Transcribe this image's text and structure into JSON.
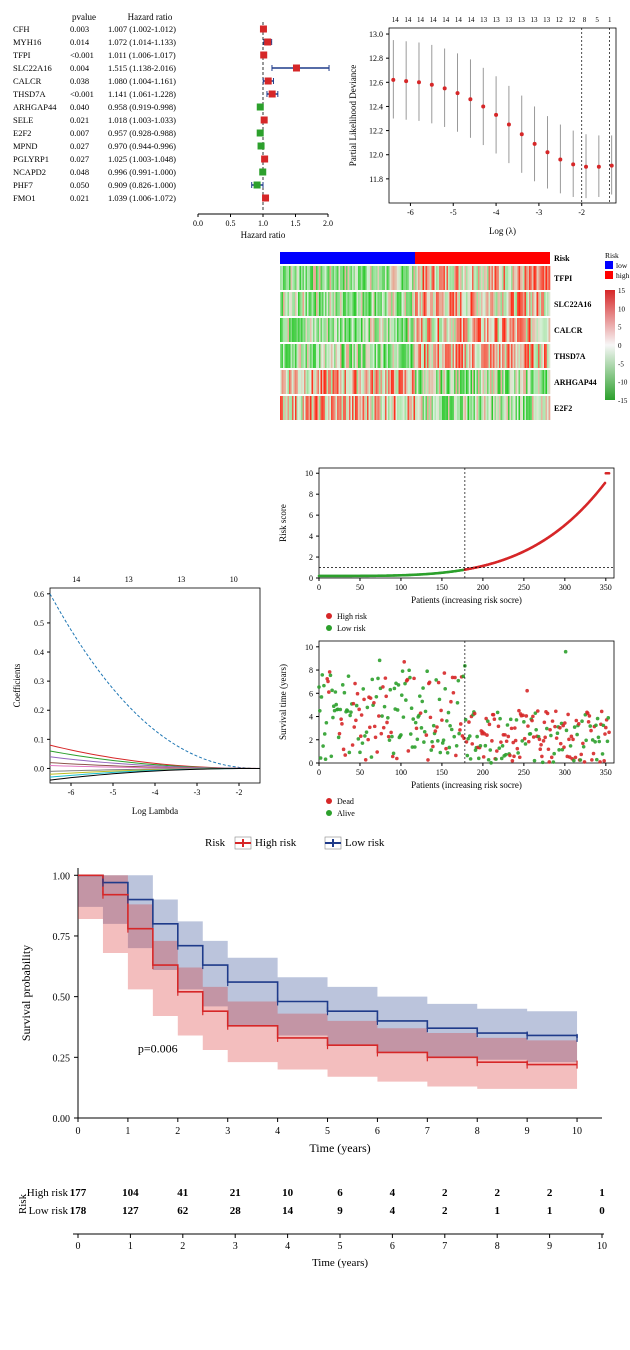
{
  "forest": {
    "title_pvalue": "pvalue",
    "title_hr": "Hazard ratio",
    "rows": [
      {
        "gene": "CFH",
        "p": "0.003",
        "hr": "1.007 (1.002-1.012)",
        "pt": 1.007,
        "lo": 1.002,
        "hi": 1.012,
        "col": "#d62728"
      },
      {
        "gene": "MYH16",
        "p": "0.014",
        "hr": "1.072 (1.014-1.133)",
        "pt": 1.072,
        "lo": 1.014,
        "hi": 1.133,
        "col": "#d62728"
      },
      {
        "gene": "TFPI",
        "p": "<0.001",
        "hr": "1.011 (1.006-1.017)",
        "pt": 1.011,
        "lo": 1.006,
        "hi": 1.017,
        "col": "#d62728"
      },
      {
        "gene": "SLC22A16",
        "p": "0.004",
        "hr": "1.515 (1.138-2.016)",
        "pt": 1.515,
        "lo": 1.138,
        "hi": 2.016,
        "col": "#d62728"
      },
      {
        "gene": "CALCR",
        "p": "0.038",
        "hr": "1.080 (1.004-1.161)",
        "pt": 1.08,
        "lo": 1.004,
        "hi": 1.161,
        "col": "#d62728"
      },
      {
        "gene": "THSD7A",
        "p": "<0.001",
        "hr": "1.141 (1.061-1.228)",
        "pt": 1.141,
        "lo": 1.061,
        "hi": 1.228,
        "col": "#d62728"
      },
      {
        "gene": "ARHGAP44",
        "p": "0.040",
        "hr": "0.958 (0.919-0.998)",
        "pt": 0.958,
        "lo": 0.919,
        "hi": 0.998,
        "col": "#2ca02c"
      },
      {
        "gene": "SELE",
        "p": "0.021",
        "hr": "1.018 (1.003-1.033)",
        "pt": 1.018,
        "lo": 1.003,
        "hi": 1.033,
        "col": "#d62728"
      },
      {
        "gene": "E2F2",
        "p": "0.007",
        "hr": "0.957 (0.928-0.988)",
        "pt": 0.957,
        "lo": 0.928,
        "hi": 0.988,
        "col": "#2ca02c"
      },
      {
        "gene": "MPND",
        "p": "0.027",
        "hr": "0.970 (0.944-0.996)",
        "pt": 0.97,
        "lo": 0.944,
        "hi": 0.996,
        "col": "#2ca02c"
      },
      {
        "gene": "PGLYRP1",
        "p": "0.027",
        "hr": "1.025 (1.003-1.048)",
        "pt": 1.025,
        "lo": 1.003,
        "hi": 1.048,
        "col": "#d62728"
      },
      {
        "gene": "NCAPD2",
        "p": "0.048",
        "hr": "0.996 (0.991-1.000)",
        "pt": 0.996,
        "lo": 0.991,
        "hi": 1.0,
        "col": "#2ca02c"
      },
      {
        "gene": "PHF7",
        "p": "0.050",
        "hr": "0.909 (0.826-1.000)",
        "pt": 0.909,
        "lo": 0.826,
        "hi": 1.0,
        "col": "#2ca02c"
      },
      {
        "gene": "FMO1",
        "p": "0.021",
        "hr": "1.039 (1.006-1.072)",
        "pt": 1.039,
        "lo": 1.006,
        "hi": 1.072,
        "col": "#d62728"
      }
    ],
    "xticks": [
      0.0,
      0.5,
      1.0,
      1.5,
      2.0
    ],
    "xlabel": "Hazard ratio",
    "box_size": 7,
    "whisker_color": "#1f3b8a"
  },
  "lasso_cv": {
    "top_labels": [
      "14",
      "14",
      "14",
      "14",
      "14",
      "14",
      "14",
      "13",
      "13",
      "13",
      "13",
      "13",
      "13",
      "12",
      "12",
      "8",
      "5",
      "1"
    ],
    "xlabel": "Log (λ)",
    "ylabel": "Partial Likelihood Deviance",
    "xlim": [
      -6.5,
      -1.2
    ],
    "ylim": [
      11.6,
      13.05
    ],
    "yticks": [
      11.8,
      12.0,
      12.2,
      12.4,
      12.6,
      12.8,
      13.0
    ],
    "xticks": [
      -6,
      -5,
      -4,
      -3,
      -2
    ],
    "points": [
      {
        "x": -6.4,
        "y": 12.62,
        "lo": 12.3,
        "hi": 12.95
      },
      {
        "x": -6.1,
        "y": 12.61,
        "lo": 12.29,
        "hi": 12.94
      },
      {
        "x": -5.8,
        "y": 12.6,
        "lo": 12.28,
        "hi": 12.93
      },
      {
        "x": -5.5,
        "y": 12.58,
        "lo": 12.26,
        "hi": 12.91
      },
      {
        "x": -5.2,
        "y": 12.55,
        "lo": 12.23,
        "hi": 12.88
      },
      {
        "x": -4.9,
        "y": 12.51,
        "lo": 12.19,
        "hi": 12.84
      },
      {
        "x": -4.6,
        "y": 12.46,
        "lo": 12.14,
        "hi": 12.79
      },
      {
        "x": -4.3,
        "y": 12.4,
        "lo": 12.08,
        "hi": 12.72
      },
      {
        "x": -4.0,
        "y": 12.33,
        "lo": 12.01,
        "hi": 12.65
      },
      {
        "x": -3.7,
        "y": 12.25,
        "lo": 11.93,
        "hi": 12.57
      },
      {
        "x": -3.4,
        "y": 12.17,
        "lo": 11.85,
        "hi": 12.49
      },
      {
        "x": -3.1,
        "y": 12.09,
        "lo": 11.78,
        "hi": 12.4
      },
      {
        "x": -2.8,
        "y": 12.02,
        "lo": 11.72,
        "hi": 12.32
      },
      {
        "x": -2.5,
        "y": 11.96,
        "lo": 11.68,
        "hi": 12.25
      },
      {
        "x": -2.2,
        "y": 11.92,
        "lo": 11.65,
        "hi": 12.2
      },
      {
        "x": -1.9,
        "y": 11.9,
        "lo": 11.64,
        "hi": 12.17
      },
      {
        "x": -1.6,
        "y": 11.9,
        "lo": 11.65,
        "hi": 12.16
      },
      {
        "x": -1.3,
        "y": 11.91,
        "lo": 11.67,
        "hi": 12.16
      }
    ],
    "vlines": [
      -2.0,
      -1.35
    ],
    "pt_color": "#d62728",
    "bar_color": "#808080"
  },
  "heatmap": {
    "risk_title": "Risk",
    "legend_title": "Risk",
    "legend_low": "low",
    "legend_high": "high",
    "scale_ticks": [
      "15",
      "10",
      "5",
      "0",
      "-5",
      "-10",
      "-15"
    ],
    "scale_colors": [
      "#d62728",
      "#f7f7f7",
      "#2ca02c"
    ],
    "genes": [
      "TFPI",
      "SLC22A16",
      "CALCR",
      "THSD7A",
      "ARHGAP44",
      "E2F2"
    ],
    "low_color": "#0000ff",
    "high_color": "#ff0000",
    "ncols": 180
  },
  "lasso_coef": {
    "xlabel": "Log Lambda",
    "ylabel": "Coefficients",
    "top_labels": [
      "14",
      "13",
      "13",
      "10"
    ],
    "xlim": [
      -6.5,
      -1.5
    ],
    "ylim": [
      -0.05,
      0.62
    ],
    "xticks": [
      -6,
      -5,
      -4,
      -3,
      -2
    ],
    "yticks": [
      0.0,
      0.1,
      0.2,
      0.3,
      0.4,
      0.5,
      0.6
    ],
    "lines": [
      {
        "col": "#1f77b4",
        "y0": 0.6,
        "y1": 0.0
      },
      {
        "col": "#d62728",
        "y0": 0.08,
        "y1": 0.0
      },
      {
        "col": "#2ca02c",
        "y0": 0.06,
        "y1": 0.0
      },
      {
        "col": "#9467bd",
        "y0": 0.04,
        "y1": 0.0
      },
      {
        "col": "#8c564b",
        "y0": 0.02,
        "y1": 0.0
      },
      {
        "col": "#e377c2",
        "y0": 0.01,
        "y1": 0.0
      },
      {
        "col": "#7f7f7f",
        "y0": -0.01,
        "y1": 0.0
      },
      {
        "col": "#bcbd22",
        "y0": -0.02,
        "y1": 0.0
      },
      {
        "col": "#17becf",
        "y0": -0.03,
        "y1": 0.0
      },
      {
        "col": "#000000",
        "y0": -0.04,
        "y1": 0.0
      }
    ]
  },
  "risk_score": {
    "ylabel": "Risk score",
    "xlabel": "Patients (increasing risk socre)",
    "xlim": [
      0,
      360
    ],
    "ylim": [
      0,
      10.5
    ],
    "xticks": [
      0,
      50,
      100,
      150,
      200,
      250,
      300,
      350
    ],
    "vline": 178,
    "hline": 1.0,
    "legend_high": "High risk",
    "legend_low": "Low risk",
    "high_color": "#d62728",
    "low_color": "#2ca02c",
    "n": 355
  },
  "surv_scatter": {
    "ylabel": "Survival time (years)",
    "xlabel": "Patients (increasing risk socre)",
    "xlim": [
      0,
      360
    ],
    "ylim": [
      0,
      10.5
    ],
    "yticks": [
      0,
      2,
      4,
      6,
      8,
      10
    ],
    "xticks": [
      0,
      50,
      100,
      150,
      200,
      250,
      300,
      350
    ],
    "vline": 178,
    "legend_dead": "Dead",
    "legend_alive": "Alive",
    "dead_color": "#d62728",
    "alive_color": "#2ca02c",
    "n": 355
  },
  "km": {
    "title_legend": "Risk",
    "high": "High risk",
    "low": "Low risk",
    "high_color": "#d62728",
    "low_color": "#1f3b8a",
    "high_fill": "rgba(214,39,40,0.30)",
    "low_fill": "rgba(31,59,138,0.30)",
    "ylabel": "Survival probability",
    "xlabel": "Time (years)",
    "pvalue": "p=0.006",
    "xlim": [
      0,
      10.5
    ],
    "ylim": [
      0,
      1.03
    ],
    "xticks": [
      0,
      1,
      2,
      3,
      4,
      5,
      6,
      7,
      8,
      9,
      10
    ],
    "yticks": [
      0.0,
      0.25,
      0.5,
      0.75,
      1.0
    ],
    "high_path": [
      [
        0,
        1.0
      ],
      [
        0.5,
        0.92
      ],
      [
        1,
        0.78
      ],
      [
        1.5,
        0.63
      ],
      [
        2,
        0.52
      ],
      [
        2.5,
        0.44
      ],
      [
        3,
        0.38
      ],
      [
        4,
        0.33
      ],
      [
        5,
        0.3
      ],
      [
        6,
        0.27
      ],
      [
        7,
        0.25
      ],
      [
        8,
        0.23
      ],
      [
        9,
        0.22
      ],
      [
        10,
        0.22
      ]
    ],
    "low_path": [
      [
        0,
        1.0
      ],
      [
        0.5,
        0.97
      ],
      [
        1,
        0.9
      ],
      [
        1.5,
        0.8
      ],
      [
        2,
        0.71
      ],
      [
        2.5,
        0.63
      ],
      [
        3,
        0.56
      ],
      [
        4,
        0.48
      ],
      [
        5,
        0.44
      ],
      [
        6,
        0.4
      ],
      [
        7,
        0.37
      ],
      [
        8,
        0.35
      ],
      [
        9,
        0.34
      ],
      [
        10,
        0.33
      ]
    ],
    "ci": 0.1
  },
  "risk_table": {
    "ylabel": "Risk",
    "xlabel": "Time (years)",
    "rows": [
      {
        "label": "High risk",
        "vals": [
          "177",
          "104",
          "41",
          "21",
          "10",
          "6",
          "4",
          "2",
          "2",
          "2",
          "1"
        ]
      },
      {
        "label": "Low risk",
        "vals": [
          "178",
          "127",
          "62",
          "28",
          "14",
          "9",
          "4",
          "2",
          "1",
          "1",
          "0"
        ]
      }
    ],
    "xticks": [
      0,
      1,
      2,
      3,
      4,
      5,
      6,
      7,
      8,
      9,
      10
    ]
  }
}
